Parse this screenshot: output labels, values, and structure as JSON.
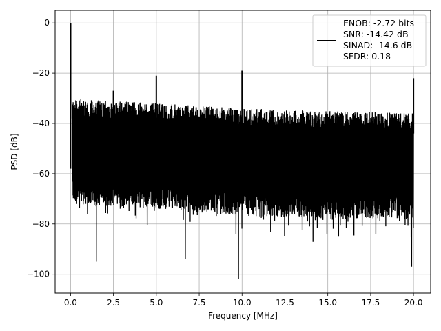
{
  "chart_data": {
    "type": "line",
    "xlabel": "Frequency [MHz]",
    "ylabel": "PSD [dB]",
    "xlim": [
      -0.9,
      21.0
    ],
    "ylim": [
      -107.5,
      5.0
    ],
    "x_ticks": [
      0.0,
      2.5,
      5.0,
      7.5,
      10.0,
      12.5,
      15.0,
      17.5,
      20.0
    ],
    "x_tick_labels": [
      "0.0",
      "2.5",
      "5.0",
      "7.5",
      "10.0",
      "12.5",
      "15.0",
      "17.5",
      "20.0"
    ],
    "y_ticks": [
      0,
      -20,
      -40,
      -60,
      -80,
      -100
    ],
    "y_tick_labels": [
      "0",
      "−20",
      "−40",
      "−60",
      "−80",
      "−100"
    ],
    "grid": true,
    "legend_position": "top-right",
    "legend_text": [
      "ENOB: -2.72 bits",
      "SNR: -14.42 dB",
      "SINAD: -14.6 dB",
      "SFDR: 0.18"
    ],
    "series": [
      {
        "color": "#000000",
        "noise_floor": {
          "x": [
            0.1,
            5,
            10,
            15,
            20
          ],
          "upper": [
            -30,
            -32,
            -34,
            -35,
            -36
          ],
          "lower": [
            -72,
            -74,
            -77,
            -78,
            -78
          ]
        },
        "peaks": [
          {
            "x": 0.0,
            "y": 0
          },
          {
            "x": 2.5,
            "y": -27
          },
          {
            "x": 5.0,
            "y": -21
          },
          {
            "x": 10.0,
            "y": -19
          },
          {
            "x": 20.0,
            "y": -22
          }
        ],
        "dips": [
          {
            "x": 1.5,
            "y": -95
          },
          {
            "x": 6.7,
            "y": -94
          },
          {
            "x": 9.8,
            "y": -102
          },
          {
            "x": 19.9,
            "y": -97
          }
        ]
      }
    ]
  }
}
